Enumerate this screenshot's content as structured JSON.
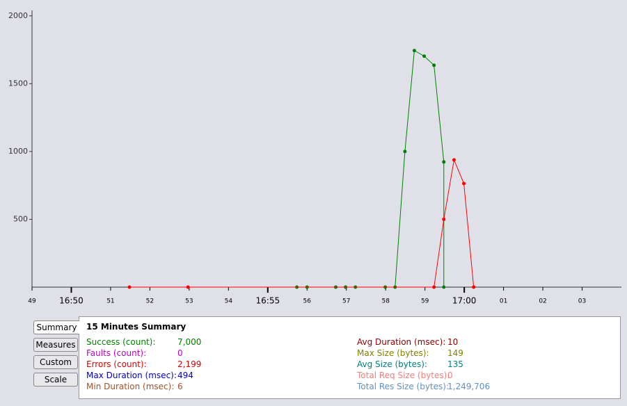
{
  "chart_data": {
    "type": "line",
    "xlim": [
      49,
      64
    ],
    "ylim": [
      0,
      2040
    ],
    "xticks": [
      49,
      {
        "value": 50,
        "label": "16:50"
      },
      51,
      52,
      53,
      54,
      {
        "value": 55,
        "label": "16:55"
      },
      56,
      57,
      58,
      59,
      {
        "value": 60,
        "label": "17:00"
      },
      {
        "value": 61,
        "label": "01"
      },
      {
        "value": 62,
        "label": "02"
      },
      {
        "value": 63,
        "label": "03"
      }
    ],
    "yticks": [
      500,
      1000,
      1500,
      2000
    ],
    "series": [
      {
        "color": "#008000",
        "x": [
          55.74,
          56.0,
          56.73,
          56.98,
          57.23,
          57.99,
          58.24,
          58.49,
          58.73,
          58.98,
          59.23,
          59.48,
          59.48
        ],
        "values": [
          0,
          0,
          0,
          0,
          0,
          0,
          0,
          1000,
          1744,
          1703,
          1636,
          923,
          0
        ]
      },
      {
        "color": "#ff0000",
        "x": [
          51.48,
          52.97,
          59.23,
          59.48,
          59.74,
          59.99,
          60.24
        ],
        "values": [
          0,
          0,
          0,
          500,
          938,
          764,
          0
        ]
      }
    ]
  },
  "buttons": [
    "Summary",
    "Measures",
    "Custom",
    "Scale"
  ],
  "summary": {
    "title": "15 Minutes Summary",
    "items": [
      {
        "label": "Success (count):",
        "value": "7,000",
        "color": "#008000"
      },
      {
        "label": "Faults (count):",
        "value": "0",
        "color": "#c000c0"
      },
      {
        "label": "Errors (count):",
        "value": "2,199",
        "color": "#e00000"
      },
      {
        "label": "Max Duration (msec):",
        "value": "494",
        "color": "#0000cc"
      },
      {
        "label": "Min Duration (msec):",
        "value": "6",
        "color": "#a0522d"
      },
      {
        "label": "Avg Duration (msec):",
        "value": "10",
        "color": "#8b0000"
      },
      {
        "label": "Max Size (bytes):",
        "value": "149",
        "color": "#808000"
      },
      {
        "label": "Avg Size (bytes):",
        "value": "135",
        "color": "#008080"
      },
      {
        "label": "Total Req Size (bytes):",
        "value": "0",
        "color": "#f08080"
      },
      {
        "label": "Total Res Size (bytes):",
        "value": "1,249,706",
        "color": "#6090c0"
      }
    ]
  }
}
